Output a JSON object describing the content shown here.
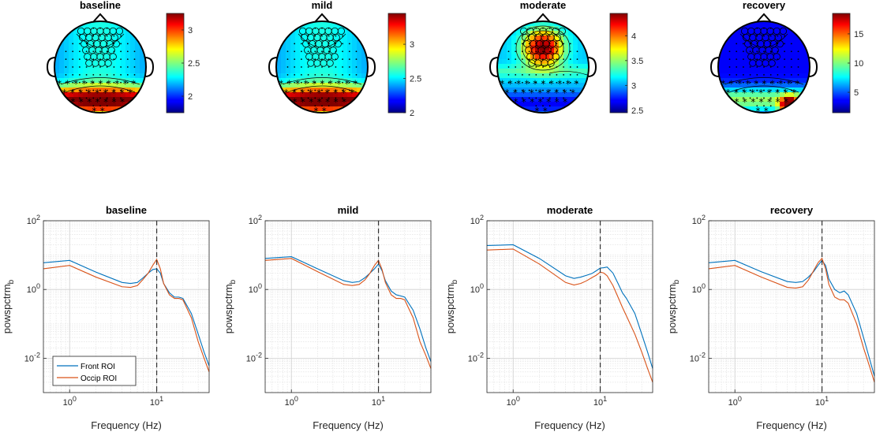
{
  "chart_data": [
    {
      "type": "heatmap",
      "title": "baseline",
      "colorbar": {
        "ticks": [
          2,
          2.5,
          3
        ],
        "range": [
          1.75,
          3.25
        ]
      },
      "hot_region": "occipital"
    },
    {
      "type": "heatmap",
      "title": "mild",
      "colorbar": {
        "ticks": [
          2,
          2.5,
          3
        ],
        "range": [
          2.0,
          3.45
        ]
      },
      "hot_region": "occipital"
    },
    {
      "type": "heatmap",
      "title": "moderate",
      "colorbar": {
        "ticks": [
          2.5,
          3,
          3.5,
          4
        ],
        "range": [
          2.45,
          4.45
        ]
      },
      "hot_region": "frontal"
    },
    {
      "type": "heatmap",
      "title": "recovery",
      "colorbar": {
        "ticks": [
          5,
          10,
          15
        ],
        "range": [
          1.5,
          18.5
        ]
      },
      "hot_region": "occipital"
    },
    {
      "type": "line",
      "title": "baseline",
      "xlabel": "Frequency (Hz)",
      "ylabel": "powspctrm_b",
      "xscale": "log",
      "yscale": "log",
      "xlim": [
        0.5,
        40
      ],
      "ylim": [
        0.001,
        100
      ],
      "xticks": [
        "10^0",
        "10^1"
      ],
      "yticks": [
        "10^-2",
        "10^0",
        "10^2"
      ],
      "vline": 10,
      "grid": true,
      "legend": {
        "location": "bottom-left",
        "entries": [
          "Front ROI",
          "Occip ROI"
        ]
      },
      "series": [
        {
          "name": "Front ROI",
          "color": "#0072BD",
          "x": [
            0.5,
            1,
            2,
            4,
            5,
            6,
            7,
            8,
            9,
            10,
            11,
            12,
            14,
            16,
            18,
            20,
            25,
            30,
            35,
            40
          ],
          "y": [
            6,
            7,
            3.2,
            1.6,
            1.5,
            1.6,
            2.2,
            3,
            3.8,
            4,
            3,
            1.5,
            0.8,
            0.6,
            0.6,
            0.55,
            0.2,
            0.05,
            0.015,
            0.006
          ]
        },
        {
          "name": "Occip ROI",
          "color": "#D95319",
          "x": [
            0.5,
            1,
            2,
            4,
            5,
            6,
            7,
            8,
            9,
            10,
            11,
            12,
            14,
            16,
            18,
            20,
            25,
            30,
            35,
            40
          ],
          "y": [
            4,
            5,
            2.3,
            1.2,
            1.15,
            1.3,
            2,
            3,
            5,
            7.5,
            4,
            1.5,
            0.7,
            0.55,
            0.55,
            0.5,
            0.15,
            0.03,
            0.01,
            0.004
          ]
        }
      ]
    },
    {
      "type": "line",
      "title": "mild",
      "xlabel": "Frequency (Hz)",
      "ylabel": "powspctrm_b",
      "xscale": "log",
      "yscale": "log",
      "xlim": [
        0.5,
        40
      ],
      "ylim": [
        0.001,
        100
      ],
      "xticks": [
        "10^0",
        "10^1"
      ],
      "yticks": [
        "10^-2",
        "10^0",
        "10^2"
      ],
      "vline": 10,
      "grid": true,
      "series": [
        {
          "name": "Front ROI",
          "color": "#0072BD",
          "x": [
            0.5,
            1,
            2,
            4,
            5,
            6,
            7,
            8,
            9,
            10,
            11,
            12,
            14,
            16,
            18,
            20,
            25,
            30,
            35,
            40
          ],
          "y": [
            8,
            9,
            4,
            1.8,
            1.6,
            1.7,
            2.2,
            3,
            4,
            5.5,
            3.5,
            1.8,
            0.9,
            0.7,
            0.65,
            0.6,
            0.25,
            0.07,
            0.02,
            0.008
          ]
        },
        {
          "name": "Occip ROI",
          "color": "#D95319",
          "x": [
            0.5,
            1,
            2,
            4,
            5,
            6,
            7,
            8,
            9,
            10,
            11,
            12,
            14,
            16,
            18,
            20,
            25,
            30,
            35,
            40
          ],
          "y": [
            7,
            8,
            3.3,
            1.4,
            1.3,
            1.4,
            1.9,
            3,
            5,
            7,
            3.8,
            1.6,
            0.7,
            0.55,
            0.55,
            0.5,
            0.15,
            0.03,
            0.012,
            0.005
          ]
        }
      ]
    },
    {
      "type": "line",
      "title": "moderate",
      "xlabel": "Frequency (Hz)",
      "ylabel": "powspctrm_b",
      "xscale": "log",
      "yscale": "log",
      "xlim": [
        0.5,
        40
      ],
      "ylim": [
        0.001,
        100
      ],
      "xticks": [
        "10^0",
        "10^1"
      ],
      "yticks": [
        "10^-2",
        "10^0",
        "10^2"
      ],
      "vline": 10,
      "grid": true,
      "series": [
        {
          "name": "Front ROI",
          "color": "#0072BD",
          "x": [
            0.5,
            1,
            2,
            4,
            5,
            6,
            7,
            8,
            9,
            10,
            11,
            12,
            14,
            16,
            18,
            20,
            25,
            30,
            35,
            40
          ],
          "y": [
            19,
            20,
            8,
            2.5,
            2.1,
            2.3,
            2.6,
            2.9,
            3.5,
            4.2,
            4.3,
            4.5,
            3,
            1.5,
            0.8,
            0.55,
            0.2,
            0.05,
            0.015,
            0.005
          ]
        },
        {
          "name": "Occip ROI",
          "color": "#D95319",
          "x": [
            0.5,
            1,
            2,
            4,
            5,
            6,
            7,
            8,
            9,
            10,
            11,
            12,
            14,
            16,
            18,
            20,
            25,
            30,
            35,
            40
          ],
          "y": [
            14,
            15,
            5.5,
            1.6,
            1.35,
            1.5,
            1.8,
            2.2,
            2.6,
            3.2,
            3,
            2.5,
            1.3,
            0.6,
            0.3,
            0.17,
            0.05,
            0.015,
            0.005,
            0.002
          ]
        }
      ]
    },
    {
      "type": "line",
      "title": "recovery",
      "xlabel": "Frequency (Hz)",
      "ylabel": "powspctrm_b",
      "xscale": "log",
      "yscale": "log",
      "xlim": [
        0.5,
        40
      ],
      "ylim": [
        0.001,
        100
      ],
      "xticks": [
        "10^0",
        "10^1"
      ],
      "yticks": [
        "10^-2",
        "10^0",
        "10^2"
      ],
      "vline": 10,
      "grid": true,
      "series": [
        {
          "name": "Front ROI",
          "color": "#0072BD",
          "x": [
            0.5,
            1,
            2,
            4,
            5,
            6,
            7,
            8,
            9,
            10,
            11,
            12,
            14,
            16,
            18,
            20,
            25,
            30,
            35,
            40
          ],
          "y": [
            6,
            7,
            3.3,
            1.7,
            1.6,
            1.7,
            2.3,
            3.3,
            5,
            7,
            5,
            2,
            1,
            0.8,
            0.9,
            0.7,
            0.2,
            0.04,
            0.01,
            0.003
          ]
        },
        {
          "name": "Occip ROI",
          "color": "#D95319",
          "x": [
            0.5,
            1,
            2,
            4,
            5,
            6,
            7,
            8,
            9,
            10,
            11,
            12,
            14,
            16,
            18,
            20,
            25,
            30,
            35,
            40
          ],
          "y": [
            4,
            5,
            2.3,
            1.15,
            1.1,
            1.2,
            1.9,
            3.5,
            6,
            8,
            4,
            1.4,
            0.6,
            0.5,
            0.5,
            0.4,
            0.1,
            0.02,
            0.006,
            0.002
          ]
        }
      ]
    }
  ]
}
